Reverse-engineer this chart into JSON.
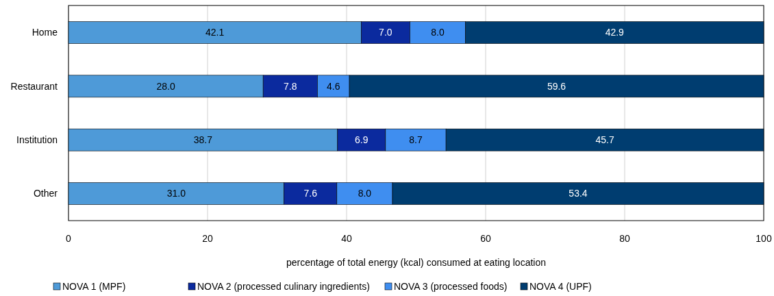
{
  "chart_data": {
    "type": "bar",
    "orientation": "horizontal",
    "stacked": true,
    "categories": [
      "Home",
      "Restaurant",
      "Institution",
      "Other"
    ],
    "series": [
      {
        "name": "NOVA 1 (MPF)",
        "color": "#4e9ad8",
        "values": [
          42.1,
          28.0,
          38.7,
          31.0
        ],
        "value_labels": [
          "42.1",
          "28.0",
          "38.7",
          "31.0"
        ]
      },
      {
        "name": "NOVA 2 (processed culinary ingredients)",
        "color": "#0b2a9e",
        "values": [
          7.0,
          7.8,
          6.9,
          7.6
        ],
        "value_labels": [
          "7.0",
          "7.8",
          "6.9",
          "7.6"
        ]
      },
      {
        "name": "NOVA 3 (processed foods)",
        "color": "#3f8ef0",
        "values": [
          8.0,
          4.6,
          8.7,
          8.0
        ],
        "value_labels": [
          "8.0",
          "4.6",
          "8.7",
          "8.0"
        ]
      },
      {
        "name": "NOVA 4 (UPF)",
        "color": "#003d70",
        "values": [
          42.9,
          59.6,
          45.7,
          53.4
        ],
        "value_labels": [
          "42.9",
          "59.6",
          "45.7",
          "53.4"
        ]
      }
    ],
    "xlim": [
      0,
      100
    ],
    "xticks": [
      0,
      20,
      40,
      60,
      80,
      100
    ],
    "xlabel": "percentage of total energy (kcal) consumed at eating location",
    "grid": "x",
    "legend": "bottom"
  }
}
